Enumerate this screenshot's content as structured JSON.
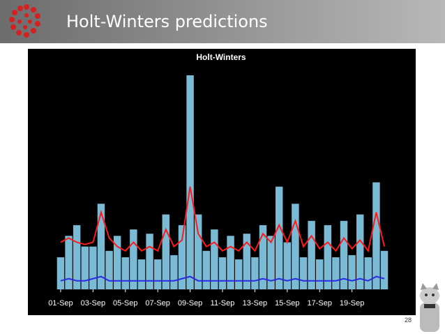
{
  "slide": {
    "title": "Holt-Winters predictions",
    "page_number": "28"
  },
  "chart_data": {
    "type": "line",
    "title": "Holt-Winters",
    "x": [
      1,
      1.5,
      2,
      2.5,
      3,
      3.5,
      4,
      4.5,
      5,
      5.5,
      6,
      6.5,
      7,
      7.5,
      8,
      8.5,
      9,
      9.5,
      10,
      10.5,
      11,
      11.5,
      12,
      12.5,
      13,
      13.5,
      14,
      14.5,
      15,
      15.5,
      16,
      16.5,
      17,
      17.5,
      18,
      18.5,
      19,
      19.5,
      20,
      20.5,
      21
    ],
    "series": [
      {
        "color": "#87ceeb",
        "style": "bars",
        "values": [
          15,
          25,
          30,
          20,
          20,
          40,
          18,
          25,
          15,
          28,
          14,
          26,
          14,
          35,
          16,
          30,
          100,
          35,
          18,
          28,
          15,
          25,
          14,
          26,
          15,
          30,
          25,
          48,
          22,
          40,
          15,
          32,
          14,
          30,
          15,
          32,
          16,
          35,
          15,
          50,
          18
        ]
      },
      {
        "color": "#ff1a1a",
        "style": "line",
        "values": [
          22,
          24,
          22,
          21,
          22,
          36,
          24,
          20,
          18,
          22,
          18,
          20,
          18,
          28,
          20,
          23,
          48,
          26,
          20,
          22,
          18,
          20,
          18,
          22,
          18,
          26,
          22,
          30,
          22,
          32,
          20,
          25,
          19,
          22,
          18,
          24,
          19,
          23,
          18,
          36,
          20
        ]
      },
      {
        "color": "#2a2ae0",
        "style": "line",
        "values": [
          4,
          5,
          4,
          4,
          5,
          6,
          4,
          4,
          4,
          4,
          4,
          4,
          4,
          4,
          4,
          5,
          6,
          4,
          4,
          4,
          4,
          4,
          4,
          4,
          4,
          5,
          4,
          5,
          4,
          5,
          4,
          4,
          4,
          4,
          4,
          5,
          4,
          5,
          4,
          6,
          5
        ]
      }
    ],
    "xlim": [
      0.83,
      21.3
    ],
    "ylim": [
      0,
      100
    ],
    "xticks": [
      {
        "value": 1,
        "label": "01-Sep"
      },
      {
        "value": 3,
        "label": "03-Sep"
      },
      {
        "value": 5,
        "label": "05-Sep"
      },
      {
        "value": 7,
        "label": "07-Sep"
      },
      {
        "value": 9,
        "label": "09-Sep"
      },
      {
        "value": 11,
        "label": "11-Sep"
      },
      {
        "value": 13,
        "label": "13-Sep"
      },
      {
        "value": 15,
        "label": "15-Sep"
      },
      {
        "value": 17,
        "label": "17-Sep"
      },
      {
        "value": 19,
        "label": "19-Sep"
      }
    ]
  }
}
